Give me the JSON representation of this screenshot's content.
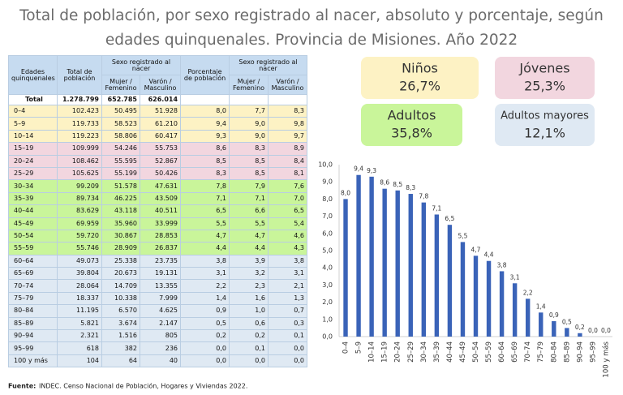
{
  "title": [
    "Total de población, por sexo registrado al nacer, absoluto y porcentaje, según",
    "edades quinquenales. Provincia de Misiones. Año 2022"
  ],
  "table": {
    "header_top": [
      "Edades quinquenales",
      "Total de población",
      "Sexo registrado al nacer",
      "Porcentaje de población",
      "Sexo registrado al nacer"
    ],
    "header_sub": [
      "Mujer / Femenino",
      "Varón / Masculino",
      "Mujer / Femenino",
      "Varón / Masculino"
    ],
    "total": [
      "Total",
      "1.278.799",
      "652.785",
      "626.014"
    ],
    "rows": [
      [
        "0–4",
        "102.423",
        "50.495",
        "51.928",
        "8,0",
        "7,7",
        "8,3"
      ],
      [
        "5–9",
        "119.733",
        "58.523",
        "61.210",
        "9,4",
        "9,0",
        "9,8"
      ],
      [
        "10–14",
        "119.223",
        "58.806",
        "60.417",
        "9,3",
        "9,0",
        "9,7"
      ],
      [
        "15–19",
        "109.999",
        "54.246",
        "55.753",
        "8,6",
        "8,3",
        "8,9"
      ],
      [
        "20–24",
        "108.462",
        "55.595",
        "52.867",
        "8,5",
        "8,5",
        "8,4"
      ],
      [
        "25–29",
        "105.625",
        "55.199",
        "50.426",
        "8,3",
        "8,5",
        "8,1"
      ],
      [
        "30–34",
        "99.209",
        "51.578",
        "47.631",
        "7,8",
        "7,9",
        "7,6"
      ],
      [
        "35–39",
        "89.734",
        "46.225",
        "43.509",
        "7,1",
        "7,1",
        "7,0"
      ],
      [
        "40–44",
        "83.629",
        "43.118",
        "40.511",
        "6,5",
        "6,6",
        "6,5"
      ],
      [
        "45–49",
        "69.959",
        "35.960",
        "33.999",
        "5,5",
        "5,5",
        "5,4"
      ],
      [
        "50–54",
        "59.720",
        "30.867",
        "28.853",
        "4,7",
        "4,7",
        "4,6"
      ],
      [
        "55–59",
        "55.746",
        "28.909",
        "26.837",
        "4,4",
        "4,4",
        "4,3"
      ],
      [
        "60–64",
        "49.073",
        "25.338",
        "23.735",
        "3,8",
        "3,9",
        "3,8"
      ],
      [
        "65–69",
        "39.804",
        "20.673",
        "19.131",
        "3,1",
        "3,2",
        "3,1"
      ],
      [
        "70–74",
        "28.064",
        "14.709",
        "13.355",
        "2,2",
        "2,3",
        "2,1"
      ],
      [
        "75–79",
        "18.337",
        "10.338",
        "7.999",
        "1,4",
        "1,6",
        "1,3"
      ],
      [
        "80–84",
        "11.195",
        "6.570",
        "4.625",
        "0,9",
        "1,0",
        "0,7"
      ],
      [
        "85–89",
        "5.821",
        "3.674",
        "2.147",
        "0,5",
        "0,6",
        "0,3"
      ],
      [
        "90–94",
        "2.321",
        "1.516",
        "805",
        "0,2",
        "0,2",
        "0,1"
      ],
      [
        "95–99",
        "618",
        "382",
        "236",
        "0,0",
        "0,1",
        "0,0"
      ],
      [
        "100 y más",
        "104",
        "64",
        "40",
        "0,0",
        "0,0",
        "0,0"
      ]
    ]
  },
  "boxes": [
    {
      "label": "Niños",
      "value": "26,7%",
      "color": "#fdf2c4"
    },
    {
      "label": "Jóvenes",
      "value": "25,3%",
      "color": "#f2d6df"
    },
    {
      "label": "Adultos",
      "value": "35,8%",
      "color": "#c9f59a"
    },
    {
      "label": "Adultos mayores",
      "value": "12,1%",
      "color": "#dfe9f3"
    }
  ],
  "chart_data": {
    "type": "bar",
    "categories": [
      "0–4",
      "5–9",
      "10–14",
      "15–19",
      "20–24",
      "25–29",
      "30–34",
      "35–39",
      "40–44",
      "45–49",
      "50–54",
      "55–59",
      "60–64",
      "65–69",
      "70–74",
      "75–79",
      "80–84",
      "85–89",
      "90–94",
      "95–99",
      "100 y más"
    ],
    "values": [
      8.0,
      9.4,
      9.3,
      8.6,
      8.5,
      8.3,
      7.8,
      7.1,
      6.5,
      5.5,
      4.7,
      4.4,
      3.8,
      3.1,
      2.2,
      1.4,
      0.9,
      0.5,
      0.2,
      0.0,
      0.0
    ],
    "value_labels": [
      "8,0",
      "9,4",
      "9,3",
      "8,6",
      "8,5",
      "8,3",
      "7,8",
      "7,1",
      "6,5",
      "5,5",
      "4,7",
      "4,4",
      "3,8",
      "3,1",
      "2,2",
      "1,4",
      "0,9",
      "0,5",
      "0,2",
      "0,0",
      "0,0"
    ],
    "color": "#3a63b8",
    "ylim": [
      0,
      10
    ],
    "yticks": [
      {
        "value": 0,
        "label": "0,0"
      },
      {
        "value": 1,
        "label": "1,0"
      },
      {
        "value": 2,
        "label": "2,0"
      },
      {
        "value": 3,
        "label": "3,0"
      },
      {
        "value": 4,
        "label": "4,0"
      },
      {
        "value": 5,
        "label": "5,0"
      },
      {
        "value": 6,
        "label": "6,0"
      },
      {
        "value": 7,
        "label": "7,0"
      },
      {
        "value": 8,
        "label": "8,0"
      },
      {
        "value": 9,
        "label": "9,0"
      },
      {
        "value": 10,
        "label": "10,0"
      }
    ],
    "grid": false
  },
  "source": {
    "label": "Fuente:",
    "text": "INDEC. Censo Nacional de Población, Hogares y Viviendas 2022."
  }
}
